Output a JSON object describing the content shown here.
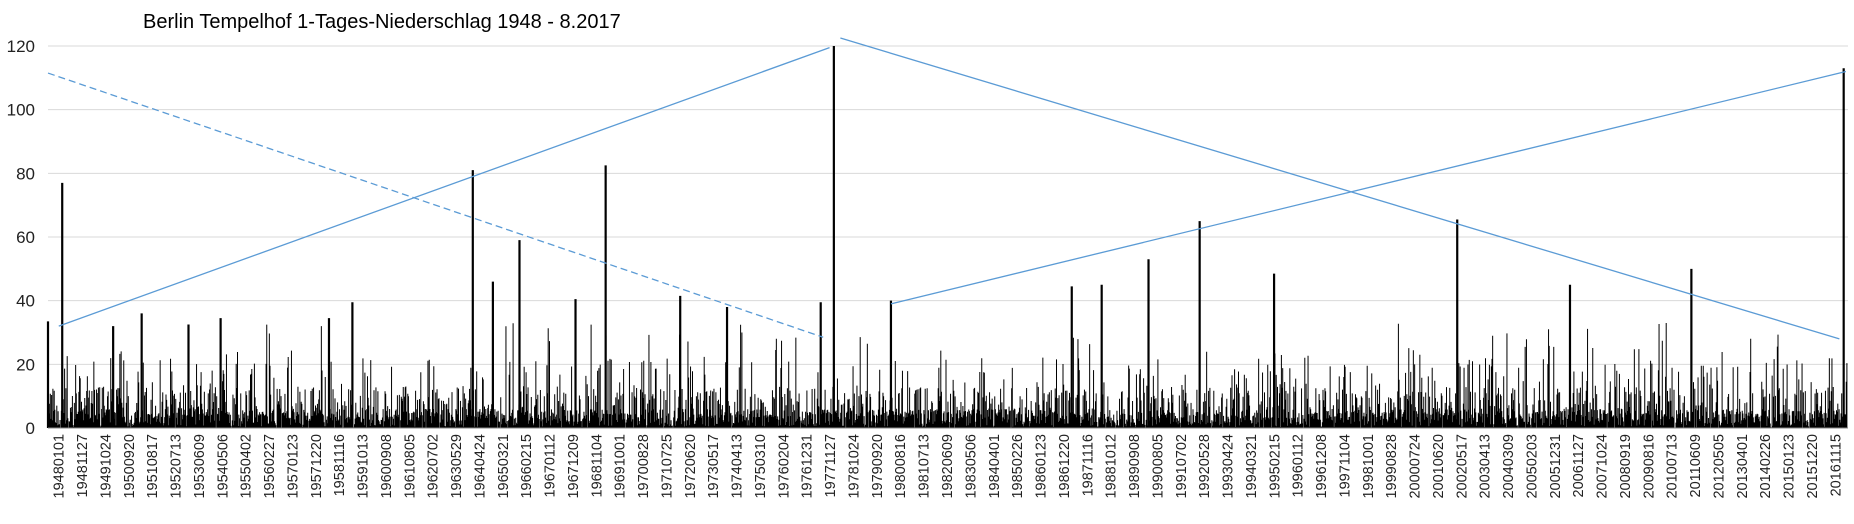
{
  "chart_data": {
    "type": "bar",
    "title": "Berlin Tempelhof 1-Tages-Niederschlag 1948 - 8.2017",
    "xlabel": "",
    "ylabel": "",
    "ylim": [
      0,
      120
    ],
    "yticks": [
      0,
      20,
      40,
      60,
      80,
      100,
      120
    ],
    "grid": "horizontal",
    "bar_color": "#000000",
    "trend_color": "#5b9bd5",
    "categories": [
      "19480101",
      "19481127",
      "19491024",
      "19500920",
      "19510817",
      "19520713",
      "19530609",
      "19540506",
      "19550402",
      "19560227",
      "19570123",
      "19571220",
      "19581116",
      "19591013",
      "19600908",
      "19610805",
      "19620702",
      "19630529",
      "19640424",
      "19650321",
      "19660215",
      "19670112",
      "19671209",
      "19681104",
      "19691001",
      "19700828",
      "19710725",
      "19720620",
      "19730517",
      "19740413",
      "19750310",
      "19760204",
      "19761231",
      "19771127",
      "19781024",
      "19790920",
      "19800816",
      "19810713",
      "19820609",
      "19830506",
      "19840401",
      "19850226",
      "19860123",
      "19861220",
      "19871116",
      "19881012",
      "19890908",
      "19900805",
      "19910702",
      "19920528",
      "19930424",
      "19940321",
      "19950215",
      "19960112",
      "19961208",
      "19971104",
      "19981001",
      "19990828",
      "20000724",
      "20010620",
      "20020517",
      "20030413",
      "20040309",
      "20050203",
      "20051231",
      "20061127",
      "20071024",
      "20080919",
      "20090816",
      "20100713",
      "20110609",
      "20120505",
      "20130401",
      "20140226",
      "20150123",
      "20151220",
      "20161115"
    ],
    "peaks": [
      {
        "date": "19480101",
        "value": 33.5
      },
      {
        "date": "19480720",
        "value": 77
      },
      {
        "date": "19500710",
        "value": 32
      },
      {
        "date": "19510817",
        "value": 36
      },
      {
        "date": "19530609",
        "value": 32.5
      },
      {
        "date": "19540906",
        "value": 34.5
      },
      {
        "date": "19581116",
        "value": 34.5
      },
      {
        "date": "19591013",
        "value": 39.5
      },
      {
        "date": "19640610",
        "value": 81
      },
      {
        "date": "19650321",
        "value": 46
      },
      {
        "date": "19660401",
        "value": 59
      },
      {
        "date": "19680601",
        "value": 40.5
      },
      {
        "date": "19690801",
        "value": 82.5
      },
      {
        "date": "19720620",
        "value": 41.5
      },
      {
        "date": "19740413",
        "value": 38
      },
      {
        "date": "19771127",
        "value": 39.5
      },
      {
        "date": "19780601",
        "value": 120
      },
      {
        "date": "19800816",
        "value": 40
      },
      {
        "date": "19870816",
        "value": 44.5
      },
      {
        "date": "19881012",
        "value": 45
      },
      {
        "date": "19900805",
        "value": 53
      },
      {
        "date": "19920728",
        "value": 65
      },
      {
        "date": "19950615",
        "value": 48.5
      },
      {
        "date": "20020717",
        "value": 65.5
      },
      {
        "date": "20061127",
        "value": 45
      },
      {
        "date": "20110809",
        "value": 50
      },
      {
        "date": "20170701",
        "value": 113
      }
    ],
    "trendlines": [
      {
        "style": "dashed",
        "from": {
          "date": "19480101",
          "value": 111.5
        },
        "to": {
          "date": "19780101",
          "value": 28.5
        }
      },
      {
        "style": "solid",
        "from": {
          "date": "19480601",
          "value": 32
        },
        "to": {
          "date": "19780401",
          "value": 119.5
        }
      },
      {
        "style": "solid",
        "from": {
          "date": "19780901",
          "value": 122.5
        },
        "to": {
          "date": "20170501",
          "value": 28
        }
      },
      {
        "style": "solid",
        "from": {
          "date": "19800816",
          "value": 39
        },
        "to": {
          "date": "20170801",
          "value": 112
        }
      }
    ]
  }
}
